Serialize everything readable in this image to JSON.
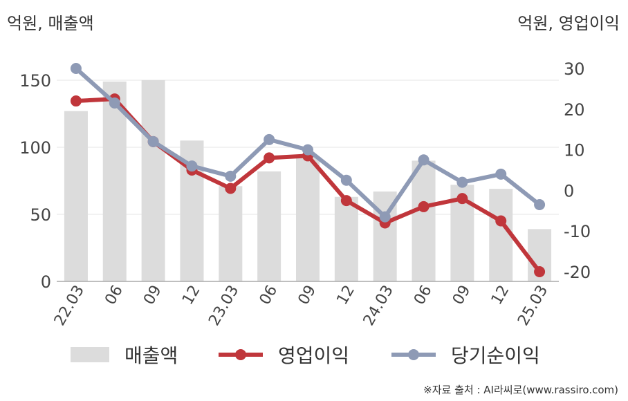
{
  "header": {
    "left_unit": "억원, 매출액",
    "right_unit": "억원, 영업이익"
  },
  "legend": {
    "sales": "매출액",
    "operating": "영업이익",
    "net": "당기순이익"
  },
  "footer": {
    "source": "※자료 출처 : AI라씨로(www.rassiro.com)"
  },
  "colors": {
    "bar": "#dcdcdc",
    "operating": "#c0363b",
    "net": "#8e9ab5",
    "grid": "#e6e6e6",
    "axis": "#aaaaaa"
  },
  "chart_data": {
    "type": "bar+line",
    "categories": [
      "22.03",
      "06",
      "09",
      "12",
      "23.03",
      "06",
      "09",
      "12",
      "24.03",
      "06",
      "09",
      "12",
      "25.03"
    ],
    "left_axis": {
      "label": "억원, 매출액",
      "ylim": [
        0,
        150
      ],
      "ticks": [
        0,
        50,
        100,
        150
      ]
    },
    "right_axis": {
      "label": "억원, 영업이익",
      "ylim": [
        -25,
        32
      ],
      "ticks": [
        -20,
        -10,
        0,
        10,
        20,
        30
      ]
    },
    "series": [
      {
        "name": "매출액",
        "kind": "bar",
        "axis": "left",
        "values": [
          127,
          149,
          150,
          105,
          71,
          82,
          93,
          63,
          67,
          90,
          72,
          69,
          39
        ]
      },
      {
        "name": "영업이익",
        "kind": "line",
        "axis": "right",
        "values": [
          22,
          22.5,
          12,
          5,
          0.5,
          8,
          8.5,
          -2.5,
          -8,
          -4,
          -2,
          -7.5,
          -20
        ]
      },
      {
        "name": "당기순이익",
        "kind": "line",
        "axis": "right",
        "values": [
          30,
          21.5,
          12,
          6,
          3.5,
          12.5,
          10,
          2.5,
          -6.5,
          7.5,
          2,
          4,
          -3.5
        ]
      }
    ],
    "grid": true,
    "legend_position": "bottom"
  }
}
